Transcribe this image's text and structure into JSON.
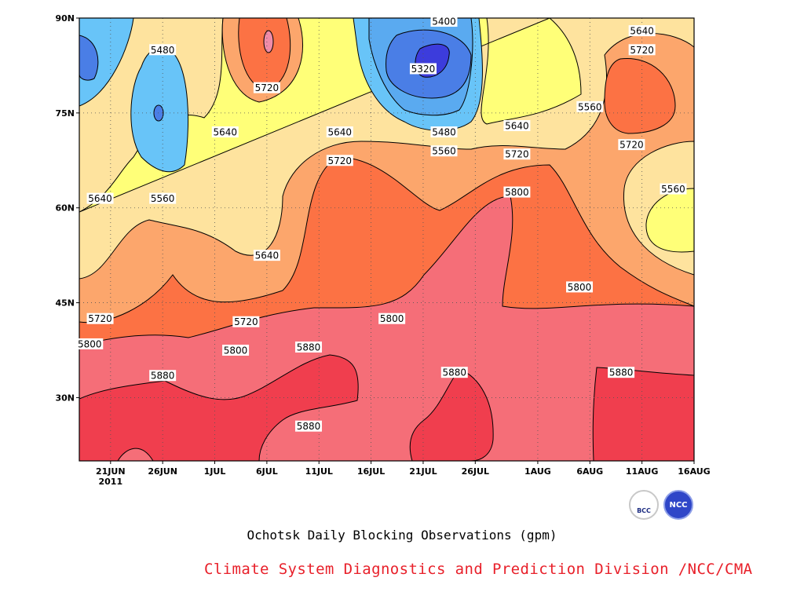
{
  "chart_data": {
    "type": "contour",
    "caption": "Ochotsk Daily Blocking Observations (gpm)",
    "credit": "Climate System Diagnostics and Prediction Division /NCC/CMA",
    "x_ticks": [
      "21JUN",
      "26JUN",
      "1JUL",
      "6JUL",
      "11JUL",
      "16JUL",
      "21JUL",
      "26JUL",
      "1AUG",
      "6AUG",
      "11AUG",
      "16AUG"
    ],
    "x_year_label": "2011",
    "x_range": [
      "2011-06-18",
      "2011-08-16"
    ],
    "y_ticks": [
      "30N",
      "45N",
      "60N",
      "75N",
      "90N"
    ],
    "y_range": [
      20,
      90
    ],
    "grid": "dotted",
    "contour_levels": [
      5320,
      5400,
      5480,
      5560,
      5640,
      5720,
      5800,
      5880
    ],
    "level_colors": {
      "below_5320": "#3c3cdc",
      "5320_5400": "#4a7ee6",
      "5400_5480": "#5aaaf0",
      "5480_5560": "#68c4f8",
      "5560_5640": "#ffff78",
      "5640_5720": "#fee39e",
      "5720_5800": "#fca66c",
      "5800_5880": "#fc7244",
      "5880_5960": "#f56e78",
      "above_5960": "#f03e4e",
      "peak": "#f08ca8"
    },
    "contour_labels": [
      {
        "text": "5400",
        "date": "2011-07-23",
        "lat": 89.5
      },
      {
        "text": "5480",
        "date": "2011-06-26",
        "lat": 85
      },
      {
        "text": "5320",
        "date": "2011-07-21",
        "lat": 82
      },
      {
        "text": "5720",
        "date": "2011-07-06",
        "lat": 79
      },
      {
        "text": "5640",
        "date": "2011-08-11",
        "lat": 88
      },
      {
        "text": "5720",
        "date": "2011-08-11",
        "lat": 85
      },
      {
        "text": "5560",
        "date": "2011-08-06",
        "lat": 76
      },
      {
        "text": "5640",
        "date": "2011-07-02",
        "lat": 72
      },
      {
        "text": "5640",
        "date": "2011-07-13",
        "lat": 72
      },
      {
        "text": "5480",
        "date": "2011-07-23",
        "lat": 72
      },
      {
        "text": "5640",
        "date": "2011-07-30",
        "lat": 73
      },
      {
        "text": "5720",
        "date": "2011-08-10",
        "lat": 70
      },
      {
        "text": "5560",
        "date": "2011-07-23",
        "lat": 69
      },
      {
        "text": "5720",
        "date": "2011-07-13",
        "lat": 67.5
      },
      {
        "text": "5720",
        "date": "2011-07-30",
        "lat": 68.5
      },
      {
        "text": "5560",
        "date": "2011-08-14",
        "lat": 63
      },
      {
        "text": "5640",
        "date": "2011-06-20",
        "lat": 61.5
      },
      {
        "text": "5560",
        "date": "2011-06-26",
        "lat": 61.5
      },
      {
        "text": "5800",
        "date": "2011-07-30",
        "lat": 62.5
      },
      {
        "text": "5640",
        "date": "2011-07-06",
        "lat": 52.5
      },
      {
        "text": "5800",
        "date": "2011-08-05",
        "lat": 47.5
      },
      {
        "text": "5720",
        "date": "2011-06-20",
        "lat": 42.5
      },
      {
        "text": "5720",
        "date": "2011-07-04",
        "lat": 42
      },
      {
        "text": "5800",
        "date": "2011-07-18",
        "lat": 42.5
      },
      {
        "text": "5800",
        "date": "2011-06-19",
        "lat": 38.5
      },
      {
        "text": "5800",
        "date": "2011-07-03",
        "lat": 37.5
      },
      {
        "text": "5880",
        "date": "2011-07-10",
        "lat": 38
      },
      {
        "text": "5880",
        "date": "2011-07-24",
        "lat": 34
      },
      {
        "text": "5880",
        "date": "2011-08-09",
        "lat": 34
      },
      {
        "text": "5880",
        "date": "2011-06-26",
        "lat": 33.5
      },
      {
        "text": "5880",
        "date": "2011-07-10",
        "lat": 25.5
      }
    ]
  },
  "logos": {
    "left": {
      "icon": "bcc-logo-icon",
      "text": "BCC"
    },
    "right": {
      "icon": "ncc-logo-icon",
      "text": "NCC"
    }
  }
}
